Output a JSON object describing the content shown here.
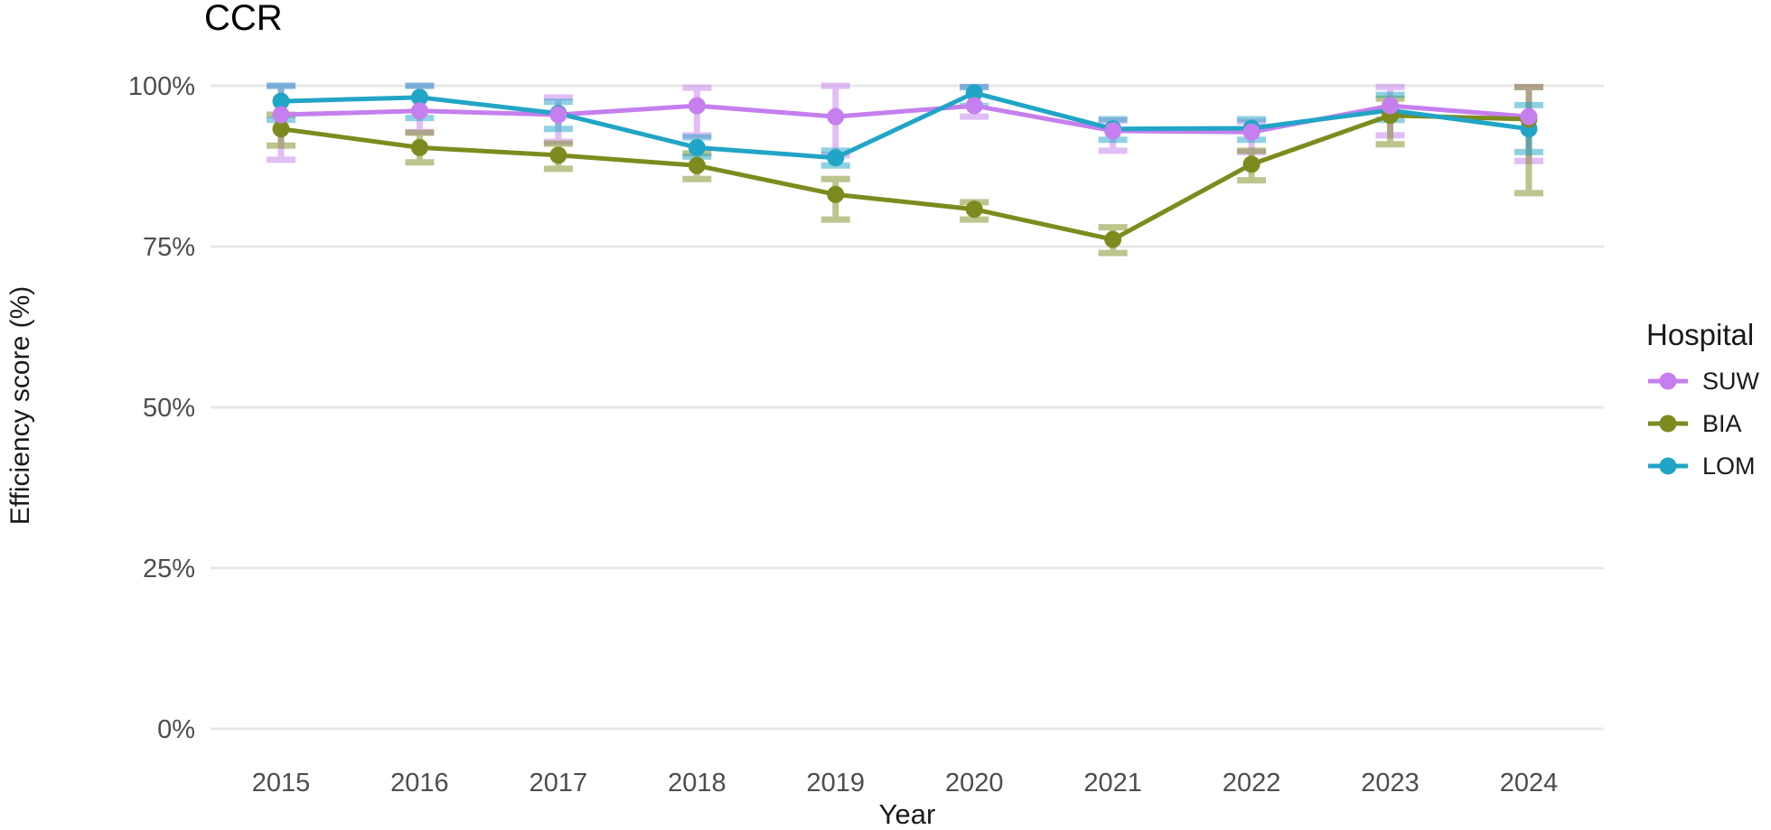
{
  "chart_data": {
    "type": "line",
    "title": "CCR",
    "xlabel": "Year",
    "ylabel": "Efficiency score (%)",
    "legend_title": "Hospital",
    "legend_position": "right",
    "grid": "horizontal-only",
    "x": [
      2015,
      2016,
      2017,
      2018,
      2019,
      2020,
      2021,
      2022,
      2023,
      2024
    ],
    "ylim": [
      0,
      100
    ],
    "yticks": [
      0,
      25,
      50,
      75,
      100
    ],
    "ytick_labels": [
      "0%",
      "25%",
      "50%",
      "75%",
      "100%"
    ],
    "colors": {
      "grid": "#e8e8e8",
      "tick_text": "#4d4d4d",
      "title_text": "#000000"
    },
    "series": [
      {
        "name": "SUW",
        "color": "#c57fee",
        "values": [
          95.5,
          96.1,
          95.5,
          96.9,
          95.2,
          96.9,
          93.0,
          92.8,
          96.9,
          95.2
        ],
        "err_low": [
          88.5,
          92.8,
          91.3,
          92.3,
          89.2,
          95.2,
          89.9,
          89.7,
          92.3,
          88.3
        ],
        "err_high": [
          100.0,
          100.0,
          98.2,
          99.7,
          100.0,
          99.8,
          94.6,
          94.4,
          99.8,
          99.8
        ]
      },
      {
        "name": "BIA",
        "color": "#7d8b1e",
        "values": [
          93.3,
          90.4,
          89.2,
          87.6,
          83.1,
          80.8,
          76.1,
          87.8,
          95.4,
          94.8
        ],
        "err_low": [
          90.7,
          88.1,
          87.1,
          85.5,
          79.2,
          79.2,
          74.0,
          85.3,
          90.9,
          83.3
        ],
        "err_high": [
          95.5,
          92.7,
          91.0,
          89.5,
          85.5,
          81.9,
          78.0,
          89.9,
          98.0,
          99.8
        ]
      },
      {
        "name": "LOM",
        "color": "#21a5c6",
        "values": [
          97.6,
          98.2,
          95.7,
          90.4,
          88.8,
          98.9,
          93.3,
          93.4,
          96.2,
          93.3
        ],
        "err_low": [
          94.7,
          95.0,
          93.3,
          89.0,
          87.6,
          96.9,
          91.6,
          91.6,
          94.7,
          89.7
        ],
        "err_high": [
          100.0,
          100.0,
          97.5,
          92.0,
          89.9,
          99.8,
          94.8,
          94.8,
          98.6,
          97.0
        ]
      }
    ]
  }
}
